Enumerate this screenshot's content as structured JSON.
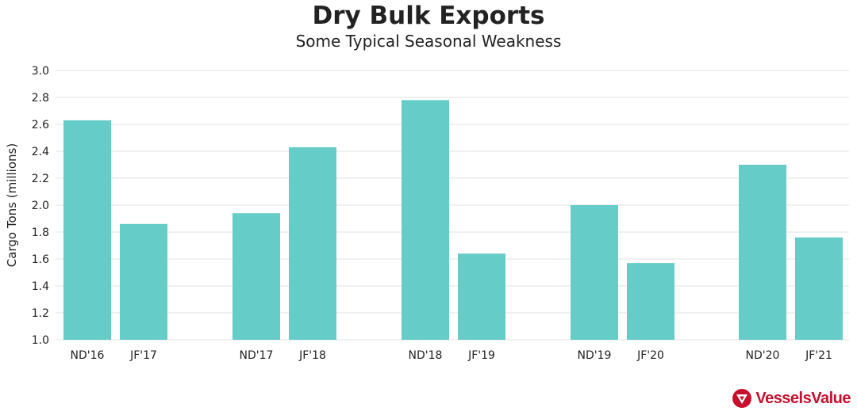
{
  "chart_data": {
    "type": "bar",
    "title": "Dry Bulk Exports",
    "subtitle": "Some Typical Seasonal Weakness",
    "ylabel": "Cargo Tons (millions)",
    "xlabel": "",
    "ylim": [
      1.0,
      3.0
    ],
    "yticks": [
      "1.0",
      "1.2",
      "1.4",
      "1.6",
      "1.8",
      "2.0",
      "2.2",
      "2.4",
      "2.6",
      "2.8",
      "3.0"
    ],
    "grid": true,
    "categories": [
      "ND'16",
      "JF'17",
      "ND'17",
      "JF'18",
      "ND'18",
      "JF'19",
      "ND'19",
      "JF'20",
      "ND'20",
      "JF'21"
    ],
    "values": [
      2.63,
      1.86,
      1.94,
      2.43,
      2.78,
      1.64,
      2.0,
      1.57,
      2.3,
      1.76
    ],
    "bar_color": "#66ccc7"
  },
  "brand": {
    "name": "VesselsValue",
    "color": "#c8102e",
    "icon": "vesselsvalue-logo-icon"
  }
}
